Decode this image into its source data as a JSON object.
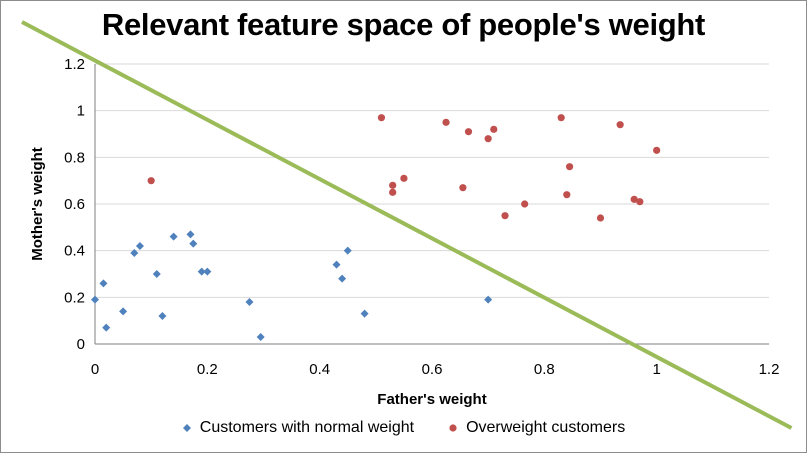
{
  "colors": {
    "normal": "#4f81bd",
    "overweight": "#c0504d",
    "boundary": "#9bbb59",
    "gridline": "#d9d9d9",
    "axis": "#7f7f7f"
  },
  "chart_data": {
    "type": "scatter",
    "title": "Relevant feature space of people's weight",
    "xlabel": "Father's weight",
    "ylabel": "Mother's weight",
    "xlim": [
      0,
      1.2
    ],
    "ylim": [
      0,
      1.2
    ],
    "x_ticks": [
      "0",
      "0.2",
      "0.4",
      "0.6",
      "0.8",
      "1",
      "1.2"
    ],
    "y_ticks": [
      "0",
      "0.2",
      "0.4",
      "0.6",
      "0.8",
      "1",
      "1.2"
    ],
    "grid": "horizontal",
    "legend_position": "bottom",
    "series": [
      {
        "name": "Customers with normal weight",
        "marker": "diamond",
        "color": "#4f81bd",
        "points": [
          [
            0.0,
            0.19
          ],
          [
            0.015,
            0.26
          ],
          [
            0.02,
            0.07
          ],
          [
            0.05,
            0.14
          ],
          [
            0.07,
            0.39
          ],
          [
            0.08,
            0.42
          ],
          [
            0.11,
            0.3
          ],
          [
            0.12,
            0.12
          ],
          [
            0.14,
            0.46
          ],
          [
            0.17,
            0.47
          ],
          [
            0.175,
            0.43
          ],
          [
            0.19,
            0.31
          ],
          [
            0.2,
            0.31
          ],
          [
            0.275,
            0.18
          ],
          [
            0.295,
            0.03
          ],
          [
            0.43,
            0.34
          ],
          [
            0.44,
            0.28
          ],
          [
            0.45,
            0.4
          ],
          [
            0.48,
            0.13
          ],
          [
            0.7,
            0.19
          ]
        ]
      },
      {
        "name": "Overweight customers",
        "marker": "circle",
        "color": "#c0504d",
        "points": [
          [
            0.1,
            0.7
          ],
          [
            0.51,
            0.97
          ],
          [
            0.53,
            0.65
          ],
          [
            0.53,
            0.68
          ],
          [
            0.55,
            0.71
          ],
          [
            0.625,
            0.95
          ],
          [
            0.655,
            0.67
          ],
          [
            0.665,
            0.91
          ],
          [
            0.7,
            0.88
          ],
          [
            0.71,
            0.92
          ],
          [
            0.73,
            0.55
          ],
          [
            0.765,
            0.6
          ],
          [
            0.83,
            0.97
          ],
          [
            0.84,
            0.64
          ],
          [
            0.845,
            0.76
          ],
          [
            0.9,
            0.54
          ],
          [
            0.935,
            0.94
          ],
          [
            0.96,
            0.62
          ],
          [
            0.97,
            0.61
          ],
          [
            1.0,
            0.83
          ]
        ]
      }
    ],
    "decision_boundary": {
      "type": "line",
      "color": "#9bbb59",
      "from": [
        -0.13,
        1.38
      ],
      "to": [
        1.24,
        -0.36
      ]
    }
  }
}
